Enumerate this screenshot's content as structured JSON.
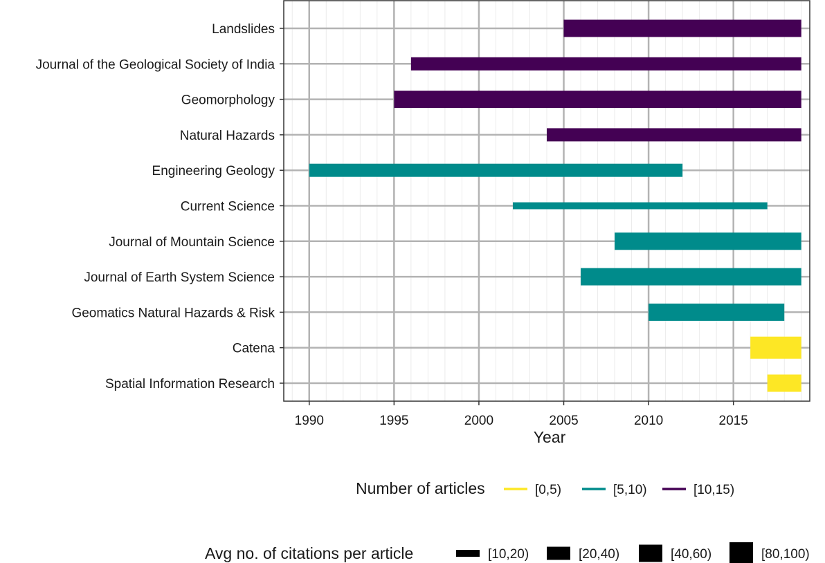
{
  "chart_data": {
    "type": "bar",
    "orientation": "horizontal-range",
    "xlabel": "Year",
    "xlim": [
      1988.5,
      2019.5
    ],
    "xticks": [
      "1990",
      "1995",
      "2000",
      "2005",
      "2010",
      "2015"
    ],
    "grid": true,
    "legend_placement": "bottom",
    "categories": [
      "Landslides",
      "Journal of the Geological Society of India",
      "Geomorphology",
      "Natural Hazards",
      "Engineering Geology",
      "Current Science",
      "Journal of Mountain Science",
      "Journal of Earth System Science",
      "Geomatics Natural Hazards & Risk",
      "Catena",
      "Spatial Information Research"
    ],
    "bars": [
      {
        "start": 2005,
        "end": 2019,
        "articles": "[10,15)",
        "citations": "[40,60)"
      },
      {
        "start": 1996,
        "end": 2019,
        "articles": "[10,15)",
        "citations": "[20,40)"
      },
      {
        "start": 1995,
        "end": 2019,
        "articles": "[10,15)",
        "citations": "[40,60)"
      },
      {
        "start": 2004,
        "end": 2019,
        "articles": "[10,15)",
        "citations": "[20,40)"
      },
      {
        "start": 1990,
        "end": 2012,
        "articles": "[5,10)",
        "citations": "[20,40)"
      },
      {
        "start": 2002,
        "end": 2017,
        "articles": "[5,10)",
        "citations": "[10,20)"
      },
      {
        "start": 2008,
        "end": 2019,
        "articles": "[5,10)",
        "citations": "[40,60)"
      },
      {
        "start": 2006,
        "end": 2019,
        "articles": "[5,10)",
        "citations": "[40,60)"
      },
      {
        "start": 2010,
        "end": 2018,
        "articles": "[5,10)",
        "citations": "[40,60)"
      },
      {
        "start": 2016,
        "end": 2019,
        "articles": "[0,5)",
        "citations": "[80,100)"
      },
      {
        "start": 2017,
        "end": 2019,
        "articles": "[0,5)",
        "citations": "[40,60)"
      }
    ],
    "legend_colour": {
      "title": "Number of articles",
      "items": [
        {
          "label": "[0,5)",
          "color": "#fde725"
        },
        {
          "label": "[5,10)",
          "color": "#008b8b"
        },
        {
          "label": "[10,15)",
          "color": "#440154"
        }
      ]
    },
    "legend_size": {
      "title": "Avg no. of citations per article",
      "items": [
        "[10,20)",
        "[20,40)",
        "[40,60)",
        "[80,100)"
      ]
    }
  }
}
